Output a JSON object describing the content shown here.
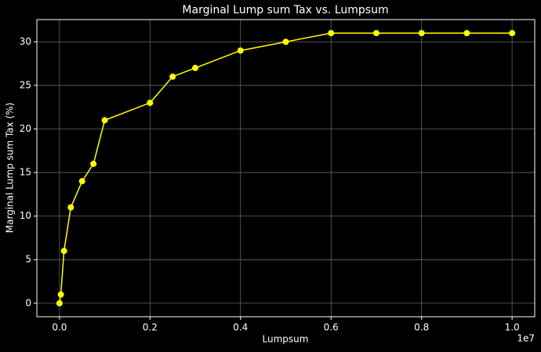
{
  "chart_data": {
    "type": "line",
    "title": "Marginal Lump sum Tax vs. Lumpsum",
    "xlabel": "Lumpsum",
    "ylabel": "Marginal Lump sum Tax (%)",
    "x_offset_label": "1e7",
    "x": [
      0,
      30000,
      100000,
      250000,
      500000,
      750000,
      1000000,
      2000000,
      2500000,
      3000000,
      4000000,
      5000000,
      6000000,
      7000000,
      8000000,
      9000000,
      10000000
    ],
    "series": [
      {
        "name": "Marginal Lump sum Tax",
        "color": "#ffff00",
        "values": [
          0,
          1,
          6,
          11,
          14,
          16,
          21,
          23,
          26,
          27,
          29,
          30,
          31,
          31,
          31,
          31,
          31
        ]
      }
    ],
    "xlim": [
      -500000,
      10500000
    ],
    "ylim": [
      -1.55,
      32.55
    ],
    "xticks": [
      {
        "value": 0,
        "label": "0.0"
      },
      {
        "value": 2000000,
        "label": "0.2"
      },
      {
        "value": 4000000,
        "label": "0.4"
      },
      {
        "value": 6000000,
        "label": "0.6"
      },
      {
        "value": 8000000,
        "label": "0.8"
      },
      {
        "value": 10000000,
        "label": "1.0"
      }
    ],
    "yticks": [
      0,
      5,
      10,
      15,
      20,
      25,
      30
    ],
    "grid": true
  }
}
